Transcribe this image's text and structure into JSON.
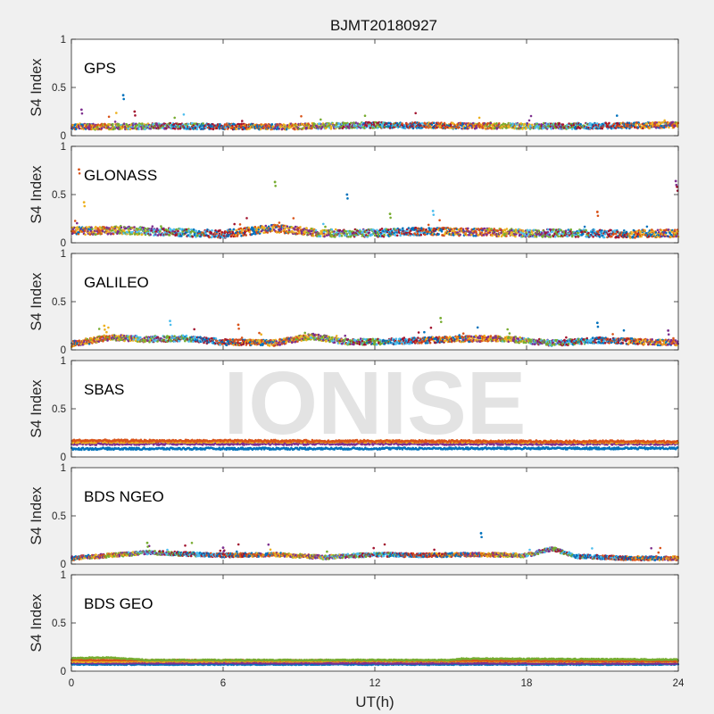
{
  "title": "BJMT20180927",
  "watermark": "IONISE",
  "chart_data": {
    "type": "scatter",
    "title": "BJMT20180927",
    "xlabel": "UT(h)",
    "xlim": [
      0,
      24
    ],
    "xticks": [
      "0",
      "6",
      "12",
      "18",
      "24"
    ],
    "ylim": [
      0,
      1
    ],
    "yticks": [
      "0",
      "0.5",
      "1"
    ],
    "grid": false,
    "legend": false,
    "colors": [
      "#0072bd",
      "#d95319",
      "#edb120",
      "#7e2f8e",
      "#77ac30",
      "#4dbeee",
      "#a2142f"
    ],
    "panels": [
      {
        "label": "GPS",
        "ylabel": "S4 Index",
        "baseline": 0.1,
        "spread": 0.03,
        "outliers": [
          {
            "x": 2.05,
            "y": 0.42
          },
          {
            "x": 0.4,
            "y": 0.27
          },
          {
            "x": 2.5,
            "y": 0.25
          }
        ],
        "series": [
          {
            "values": [
              [
                0.0,
                0.09
              ],
              [
                4.0,
                0.1
              ],
              [
                8.0,
                0.09
              ],
              [
                12.0,
                0.11
              ],
              [
                16.0,
                0.1
              ],
              [
                20.0,
                0.1
              ],
              [
                24.0,
                0.11
              ]
            ]
          }
        ]
      },
      {
        "label": "GLONASS",
        "ylabel": "S4 Index",
        "baseline": 0.1,
        "spread": 0.04,
        "outliers": [
          {
            "x": 0.3,
            "y": 0.76
          },
          {
            "x": 8.05,
            "y": 0.63
          },
          {
            "x": 10.9,
            "y": 0.5
          },
          {
            "x": 23.9,
            "y": 0.64
          },
          {
            "x": 23.95,
            "y": 0.58
          },
          {
            "x": 0.5,
            "y": 0.42
          },
          {
            "x": 14.3,
            "y": 0.33
          },
          {
            "x": 20.8,
            "y": 0.32
          },
          {
            "x": 12.6,
            "y": 0.3
          }
        ],
        "series": [
          {
            "values": [
              [
                0.0,
                0.12
              ],
              [
                2.0,
                0.13
              ],
              [
                4.0,
                0.11
              ],
              [
                6.0,
                0.09
              ],
              [
                8.0,
                0.15
              ],
              [
                10.0,
                0.1
              ],
              [
                12.0,
                0.1
              ],
              [
                14.0,
                0.12
              ],
              [
                16.0,
                0.11
              ],
              [
                18.0,
                0.1
              ],
              [
                20.0,
                0.1
              ],
              [
                22.0,
                0.09
              ],
              [
                24.0,
                0.1
              ]
            ]
          }
        ]
      },
      {
        "label": "GALILEO",
        "ylabel": "S4 Index",
        "baseline": 0.08,
        "spread": 0.03,
        "outliers": [
          {
            "x": 1.3,
            "y": 0.25
          },
          {
            "x": 3.9,
            "y": 0.3
          },
          {
            "x": 6.6,
            "y": 0.26
          },
          {
            "x": 14.6,
            "y": 0.33
          },
          {
            "x": 20.8,
            "y": 0.28
          },
          {
            "x": 23.6,
            "y": 0.2
          }
        ],
        "series": [
          {
            "values": [
              [
                0.0,
                0.06
              ],
              [
                1.5,
                0.13
              ],
              [
                3.0,
                0.11
              ],
              [
                4.5,
                0.12
              ],
              [
                6.0,
                0.08
              ],
              [
                8.0,
                0.07
              ],
              [
                9.5,
                0.14
              ],
              [
                11.0,
                0.08
              ],
              [
                13.0,
                0.09
              ],
              [
                15.0,
                0.11
              ],
              [
                17.0,
                0.12
              ],
              [
                19.0,
                0.07
              ],
              [
                21.0,
                0.1
              ],
              [
                24.0,
                0.07
              ]
            ]
          }
        ]
      },
      {
        "label": "SBAS",
        "ylabel": "S4 Index",
        "baseline": 0.13,
        "spread": 0.01,
        "outliers": [],
        "series": [
          {
            "values": [
              [
                0.0,
                0.085
              ],
              [
                24.0,
                0.09
              ]
            ]
          },
          {
            "values": [
              [
                0.0,
                0.135
              ],
              [
                24.0,
                0.135
              ]
            ]
          },
          {
            "values": [
              [
                0.0,
                0.155
              ],
              [
                12.0,
                0.16
              ],
              [
                24.0,
                0.15
              ]
            ]
          },
          {
            "values": [
              [
                0.0,
                0.17
              ],
              [
                12.0,
                0.165
              ],
              [
                24.0,
                0.16
              ]
            ]
          }
        ]
      },
      {
        "label": "BDS NGEO",
        "ylabel": "S4 Index",
        "baseline": 0.07,
        "spread": 0.02,
        "outliers": [
          {
            "x": 3.0,
            "y": 0.22
          },
          {
            "x": 16.2,
            "y": 0.32
          },
          {
            "x": 6.0,
            "y": 0.17
          }
        ],
        "series": [
          {
            "values": [
              [
                0.0,
                0.06
              ],
              [
                3.0,
                0.12
              ],
              [
                6.0,
                0.09
              ],
              [
                8.0,
                0.1
              ],
              [
                10.0,
                0.07
              ],
              [
                12.0,
                0.1
              ],
              [
                14.0,
                0.09
              ],
              [
                16.0,
                0.1
              ],
              [
                18.0,
                0.09
              ],
              [
                19.0,
                0.16
              ],
              [
                20.0,
                0.08
              ],
              [
                22.0,
                0.06
              ],
              [
                24.0,
                0.06
              ]
            ]
          }
        ]
      },
      {
        "label": "BDS GEO",
        "ylabel": "S4 Index",
        "baseline": 0.1,
        "spread": 0.005,
        "outliers": [],
        "series": [
          {
            "values": [
              [
                0.0,
                0.07
              ],
              [
                24.0,
                0.07
              ]
            ]
          },
          {
            "values": [
              [
                0.0,
                0.085
              ],
              [
                24.0,
                0.08
              ]
            ]
          },
          {
            "values": [
              [
                0.0,
                0.1
              ],
              [
                12.0,
                0.105
              ],
              [
                24.0,
                0.1
              ]
            ]
          },
          {
            "values": [
              [
                0.0,
                0.115
              ],
              [
                15.5,
                0.11
              ],
              [
                24.0,
                0.105
              ]
            ]
          },
          {
            "values": [
              [
                0.0,
                0.135
              ],
              [
                1.5,
                0.14
              ],
              [
                3.0,
                0.115
              ],
              [
                15.0,
                0.115
              ],
              [
                15.5,
                0.13
              ],
              [
                24.0,
                0.12
              ]
            ]
          }
        ]
      }
    ]
  }
}
